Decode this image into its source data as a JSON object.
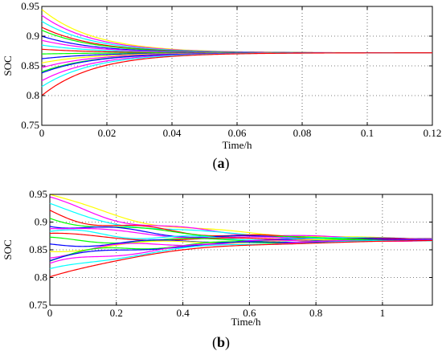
{
  "figure": {
    "captions": [
      "(a)",
      "(b)"
    ]
  },
  "chart_data": [
    {
      "type": "line",
      "xlabel": "Time/h",
      "ylabel": "SOC",
      "xlim": [
        0,
        0.12
      ],
      "ylim": [
        0.75,
        0.95
      ],
      "xticks": [
        0,
        0.02,
        0.04,
        0.06,
        0.08,
        0.1,
        0.12
      ],
      "xtick_labels": [
        "0",
        "0.02",
        "0.04",
        "0.06",
        "0.08",
        "0.1",
        "0.12"
      ],
      "yticks": [
        0.75,
        0.8,
        0.85,
        0.9,
        0.95
      ],
      "ytick_labels": [
        "0.75",
        "0.8",
        "0.85",
        "0.9",
        "0.95"
      ],
      "grid": true,
      "converge_value": 0.872,
      "converge_rate_per_h": 62,
      "series": [
        {
          "color": "#ffff00",
          "initial_soc": 0.945
        },
        {
          "color": "#ff00ff",
          "initial_soc": 0.935
        },
        {
          "color": "#00ffff",
          "initial_soc": 0.925
        },
        {
          "color": "#ff0000",
          "initial_soc": 0.915
        },
        {
          "color": "#00ff00",
          "initial_soc": 0.91
        },
        {
          "color": "#0000ff",
          "initial_soc": 0.9
        },
        {
          "color": "#ff00ff",
          "initial_soc": 0.893
        },
        {
          "color": "#00ffff",
          "initial_soc": 0.885
        },
        {
          "color": "#ff0000",
          "initial_soc": 0.878
        },
        {
          "color": "#00ff00",
          "initial_soc": 0.87
        },
        {
          "color": "#0000ff",
          "initial_soc": 0.862
        },
        {
          "color": "#ffff00",
          "initial_soc": 0.855
        },
        {
          "color": "#ff00ff",
          "initial_soc": 0.847
        },
        {
          "color": "#00ff00",
          "initial_soc": 0.84
        },
        {
          "color": "#0000ff",
          "initial_soc": 0.838
        },
        {
          "color": "#ff00ff",
          "initial_soc": 0.825
        },
        {
          "color": "#00ffff",
          "initial_soc": 0.815
        },
        {
          "color": "#ff0000",
          "initial_soc": 0.8
        }
      ]
    },
    {
      "type": "line",
      "xlabel": "Time/h",
      "ylabel": "SOC",
      "xlim": [
        0,
        1.15
      ],
      "ylim": [
        0.75,
        0.95
      ],
      "xticks": [
        0,
        0.2,
        0.4,
        0.6,
        0.8,
        1
      ],
      "xtick_labels": [
        "0",
        "0.2",
        "0.4",
        "0.6",
        "0.8",
        "1"
      ],
      "yticks": [
        0.75,
        0.8,
        0.85,
        0.9,
        0.95
      ],
      "ytick_labels": [
        "0.75",
        "0.8",
        "0.85",
        "0.9",
        "0.95"
      ],
      "grid": true,
      "converge_value": 0.868,
      "converge_rate_per_h": 3.2,
      "series": [
        {
          "color": "#ffff00",
          "initial_soc": 0.95,
          "wobble": 0.006,
          "period": 0.42
        },
        {
          "color": "#ff00ff",
          "initial_soc": 0.94,
          "wobble": 0.007,
          "period": 0.38
        },
        {
          "color": "#00ffff",
          "initial_soc": 0.928,
          "wobble": 0.006,
          "period": 0.5
        },
        {
          "color": "#ff0000",
          "initial_soc": 0.918,
          "wobble": 0.008,
          "period": 0.36
        },
        {
          "color": "#00ff00",
          "initial_soc": 0.91,
          "wobble": 0.007,
          "period": 0.44
        },
        {
          "color": "#0000ff",
          "initial_soc": 0.9,
          "wobble": 0.008,
          "period": 0.4
        },
        {
          "color": "#ff00ff",
          "initial_soc": 0.893,
          "wobble": 0.006,
          "period": 0.47
        },
        {
          "color": "#00ffff",
          "initial_soc": 0.883,
          "wobble": 0.007,
          "period": 0.35
        },
        {
          "color": "#ff0000",
          "initial_soc": 0.875,
          "wobble": 0.006,
          "period": 0.52
        },
        {
          "color": "#00ff00",
          "initial_soc": 0.866,
          "wobble": 0.007,
          "period": 0.45
        },
        {
          "color": "#0000ff",
          "initial_soc": 0.858,
          "wobble": 0.006,
          "period": 0.39
        },
        {
          "color": "#ffff00",
          "initial_soc": 0.85,
          "wobble": 0.007,
          "period": 0.48
        },
        {
          "color": "#ff00ff",
          "initial_soc": 0.843,
          "wobble": 0.008,
          "period": 0.43
        },
        {
          "color": "#00ff00",
          "initial_soc": 0.835,
          "wobble": 0.007,
          "period": 0.37
        },
        {
          "color": "#0000ff",
          "initial_soc": 0.83,
          "wobble": 0.006,
          "period": 0.46
        },
        {
          "color": "#ff00ff",
          "initial_soc": 0.82,
          "wobble": 0.007,
          "period": 0.41
        },
        {
          "color": "#00ffff",
          "initial_soc": 0.81,
          "wobble": 0.006,
          "period": 0.5
        },
        {
          "color": "#ff0000",
          "initial_soc": 0.8,
          "wobble": 0.003,
          "period": 0.6
        }
      ]
    }
  ]
}
